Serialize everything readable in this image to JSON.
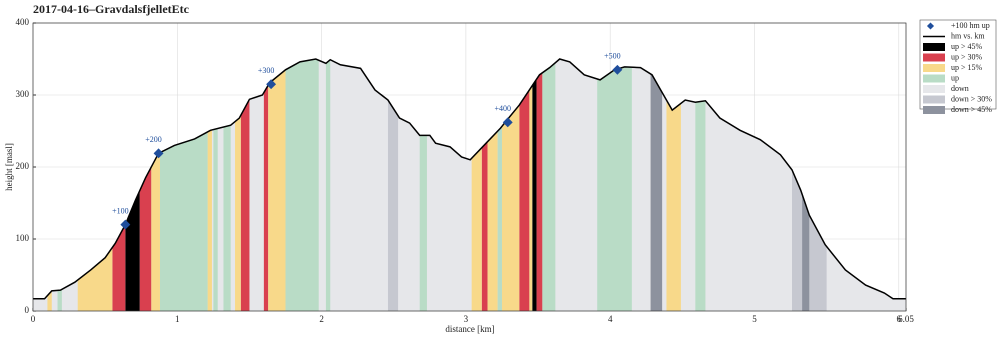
{
  "chart_data": {
    "type": "area",
    "title": "2017-04-16–GravdalsfjelletEtc",
    "xlabel": "distance [km]",
    "ylabel": "height [masl]",
    "xlim": [
      0,
      6.05
    ],
    "ylim": [
      0,
      400
    ],
    "xticks": [
      0,
      1,
      2,
      3,
      4,
      5,
      6,
      6.05
    ],
    "yticks": [
      0,
      100,
      200,
      300,
      400
    ],
    "grid": true,
    "profile": {
      "name": "hm vs. km",
      "color": "#000000",
      "x": [
        0,
        0.08,
        0.13,
        0.19,
        0.29,
        0.4,
        0.5,
        0.57,
        0.64,
        0.71,
        0.78,
        0.87,
        0.98,
        1.12,
        1.23,
        1.37,
        1.43,
        1.5,
        1.59,
        1.64,
        1.75,
        1.85,
        1.96,
        2.03,
        2.06,
        2.13,
        2.27,
        2.37,
        2.46,
        2.54,
        2.61,
        2.68,
        2.75,
        2.79,
        2.89,
        2.97,
        3.03,
        3.13,
        3.24,
        3.28,
        3.37,
        3.44,
        3.51,
        3.58,
        3.65,
        3.72,
        3.82,
        3.93,
        4.03,
        4.1,
        4.21,
        4.29,
        4.35,
        4.43,
        4.52,
        4.59,
        4.66,
        4.76,
        4.9,
        5.04,
        5.18,
        5.26,
        5.32,
        5.38,
        5.49,
        5.63,
        5.77,
        5.9,
        5.96,
        6.05
      ],
      "values": [
        17,
        17,
        28,
        29,
        40,
        57,
        74,
        94,
        120,
        154,
        185,
        219,
        230,
        239,
        251,
        258,
        268,
        294,
        300,
        317,
        335,
        346,
        350,
        344,
        349,
        342,
        337,
        307,
        293,
        268,
        261,
        244,
        244,
        233,
        228,
        214,
        210,
        231,
        254,
        264,
        286,
        307,
        328,
        338,
        350,
        346,
        328,
        321,
        335,
        339,
        338,
        328,
        307,
        279,
        293,
        290,
        292,
        268,
        251,
        238,
        217,
        196,
        168,
        133,
        92,
        57,
        36,
        25,
        17,
        17
      ]
    },
    "markers": {
      "name": "+100 hm up",
      "color": "#1f4e9c",
      "x": [
        0.64,
        0.87,
        1.65,
        3.29,
        4.05
      ],
      "values": [
        120,
        219,
        315,
        262,
        335
      ],
      "labels": [
        "+100",
        "+200",
        "+300",
        "+400",
        "+500"
      ]
    },
    "series": [
      {
        "name": "up > 45%",
        "color": "#000000",
        "ranges": [
          [
            0.64,
            0.74
          ],
          [
            3.46,
            3.49
          ]
        ]
      },
      {
        "name": "up > 30%",
        "color": "#d9404f",
        "ranges": [
          [
            0.55,
            0.64
          ],
          [
            0.74,
            0.82
          ],
          [
            1.44,
            1.5
          ],
          [
            1.6,
            1.63
          ],
          [
            3.11,
            3.15
          ],
          [
            3.37,
            3.44
          ],
          [
            3.49,
            3.53
          ]
        ]
      },
      {
        "name": "up > 15%",
        "color": "#f8d98a",
        "ranges": [
          [
            0.1,
            0.13
          ],
          [
            0.31,
            0.55
          ],
          [
            0.82,
            0.88
          ],
          [
            1.21,
            1.24
          ],
          [
            1.4,
            1.44
          ],
          [
            1.63,
            1.75
          ],
          [
            3.04,
            3.11
          ],
          [
            3.15,
            3.22
          ],
          [
            3.25,
            3.37
          ],
          [
            3.44,
            3.46
          ],
          [
            4.39,
            4.49
          ]
        ]
      },
      {
        "name": "up",
        "color": "#b9dcc6",
        "ranges": [
          [
            0.17,
            0.2
          ],
          [
            0.88,
            1.21
          ],
          [
            1.25,
            1.28
          ],
          [
            1.32,
            1.37
          ],
          [
            1.75,
            1.98
          ],
          [
            2.03,
            2.06
          ],
          [
            2.68,
            2.73
          ],
          [
            3.22,
            3.25
          ],
          [
            3.53,
            3.62
          ],
          [
            3.91,
            4.15
          ],
          [
            4.59,
            4.66
          ]
        ]
      },
      {
        "name": "down",
        "color": "#e6e7ea"
      },
      {
        "name": "down > 30%",
        "color": "#c6c8d0",
        "ranges": [
          [
            2.46,
            2.53
          ],
          [
            5.26,
            5.33
          ],
          [
            5.38,
            5.5
          ]
        ]
      },
      {
        "name": "down > 45%",
        "color": "#8d929e",
        "ranges": [
          [
            4.28,
            4.36
          ],
          [
            5.33,
            5.38
          ]
        ]
      }
    ]
  }
}
